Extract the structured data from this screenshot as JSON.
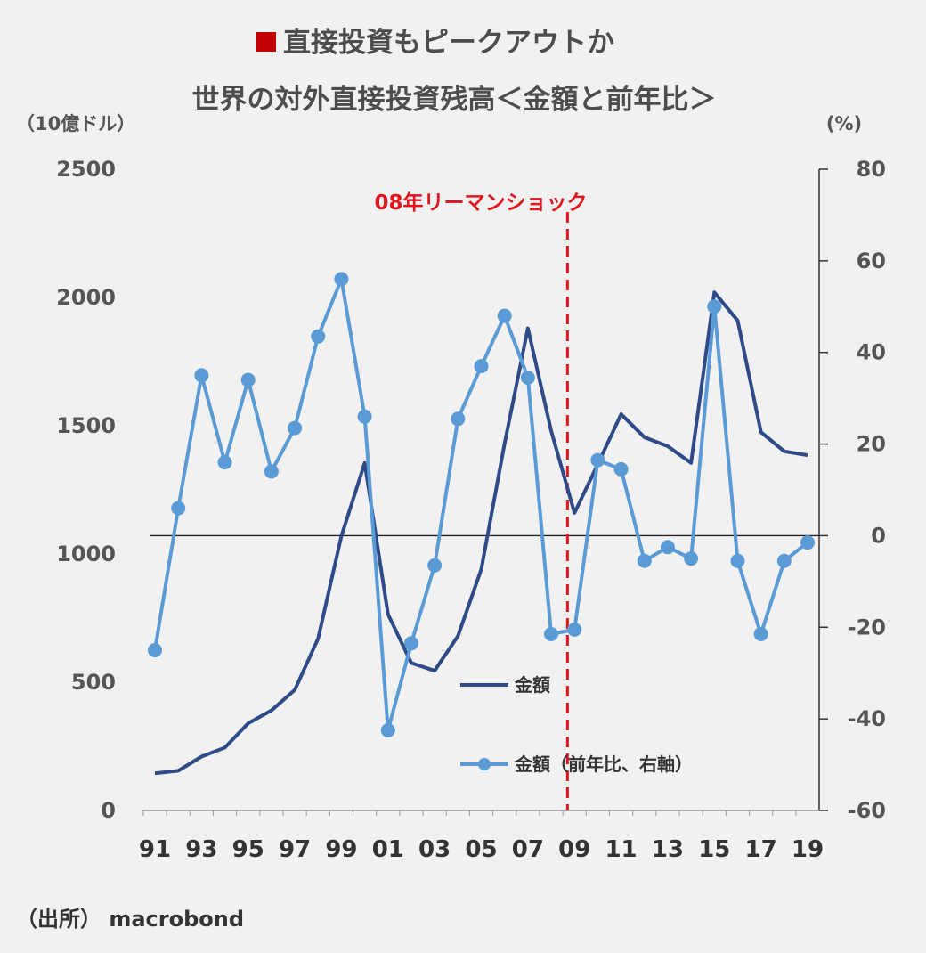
{
  "title": "直接投資もピークアウトか",
  "subtitle": "世界の対外直接投資残高＜金額と前年比＞",
  "left_unit": "（10億ドル）",
  "right_unit": "(%)",
  "event_label": "08年リーマンショック",
  "source": "（出所） macrobond",
  "colors": {
    "amount": "#2e4a87",
    "yoy": "#5b9bd5",
    "event": "#e0161e",
    "title_marker": "#c00000"
  },
  "chart_data": {
    "type": "line",
    "x": [
      1991,
      1992,
      1993,
      1994,
      1995,
      1996,
      1997,
      1998,
      1999,
      2000,
      2001,
      2002,
      2003,
      2004,
      2005,
      2006,
      2007,
      2008,
      2009,
      2010,
      2011,
      2012,
      2013,
      2014,
      2015,
      2016,
      2017,
      2018,
      2019
    ],
    "x_tick_labels": [
      "91",
      "93",
      "95",
      "97",
      "99",
      "01",
      "03",
      "05",
      "07",
      "09",
      "11",
      "13",
      "15",
      "17",
      "19"
    ],
    "x_tick_years": [
      1991,
      1993,
      1995,
      1997,
      1999,
      2001,
      2003,
      2005,
      2007,
      2009,
      2011,
      2013,
      2015,
      2017,
      2019
    ],
    "y_left": {
      "label": "（10億ドル）",
      "lim": [
        0,
        2500
      ],
      "ticks": [
        0,
        500,
        1000,
        1500,
        2000,
        2500
      ]
    },
    "y_right": {
      "label": "(%)",
      "lim": [
        -60,
        80
      ],
      "ticks": [
        -60,
        -40,
        -20,
        0,
        20,
        40,
        60,
        80
      ]
    },
    "series": [
      {
        "name": "金額",
        "axis": "left",
        "marker": false,
        "values": [
          145,
          155,
          210,
          245,
          340,
          390,
          470,
          670,
          1070,
          1355,
          765,
          575,
          545,
          680,
          940,
          1430,
          1880,
          1480,
          1160,
          1350,
          1545,
          1455,
          1420,
          1355,
          2020,
          1910,
          1475,
          1400,
          1385
        ]
      },
      {
        "name": "金額（前年比、右軸）",
        "axis": "right",
        "marker": true,
        "values": [
          -25,
          6,
          35,
          16,
          34,
          14,
          23.5,
          43.5,
          56,
          26,
          -42.5,
          -23.5,
          -6.5,
          25.5,
          37,
          48,
          34.5,
          -21.5,
          -20.5,
          16.5,
          14.5,
          -5.5,
          -2.5,
          -5,
          50,
          -5.5,
          -21.5,
          -5.5,
          -1.5
        ]
      }
    ],
    "event_line": {
      "x": 2008.7,
      "label": "08年リーマンショック"
    },
    "grid": false,
    "legend_position": "center-bottom"
  }
}
